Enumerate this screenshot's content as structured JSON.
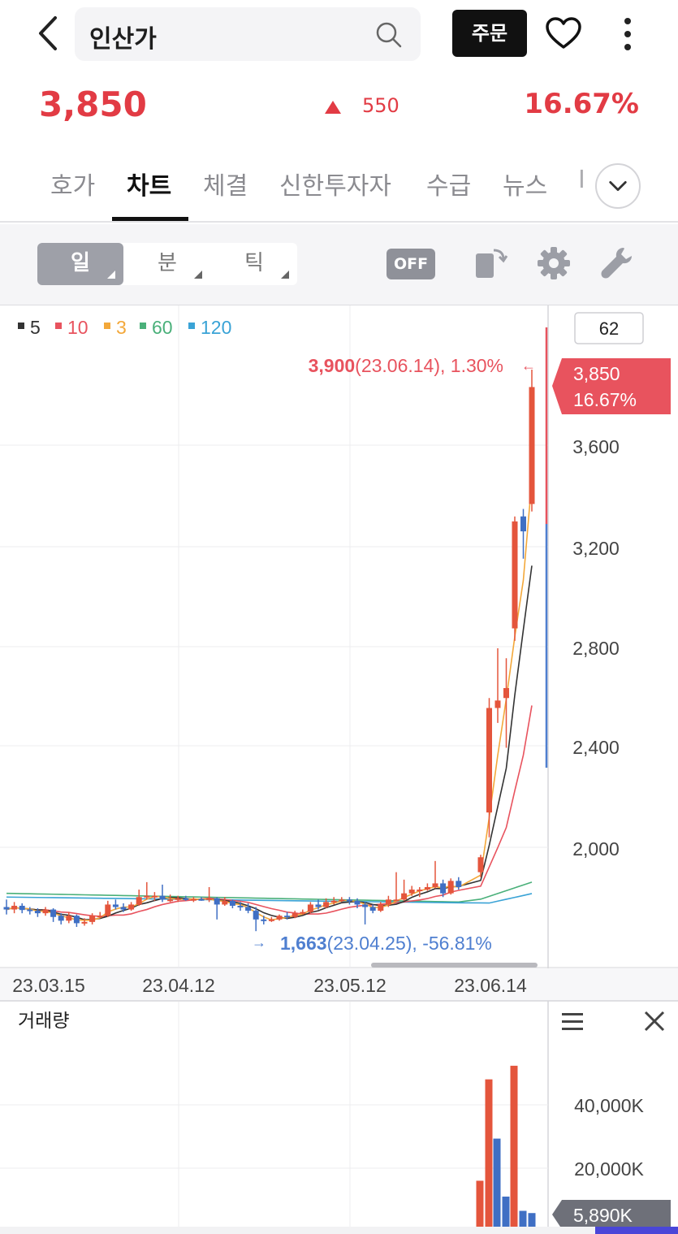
{
  "header": {
    "stock_name": "인산가",
    "order_label": "주문",
    "icons": {
      "back": "back-arrow-icon",
      "search": "search-icon",
      "favorite": "heart-icon",
      "more": "more-vertical-icon"
    }
  },
  "quote": {
    "price": "3,850",
    "change": "550",
    "change_direction": "up",
    "rate": "16.67%"
  },
  "tabs": [
    {
      "label": "호가",
      "active": false
    },
    {
      "label": "차트",
      "active": true
    },
    {
      "label": "체결",
      "active": false
    },
    {
      "label": "신한투자자",
      "active": false
    },
    {
      "label": "수급",
      "active": false
    },
    {
      "label": "뉴스",
      "active": false
    },
    {
      "label": "I",
      "active": false
    }
  ],
  "toolbar": {
    "periods": [
      {
        "label": "일",
        "active": true
      },
      {
        "label": "분",
        "active": false
      },
      {
        "label": "틱",
        "active": false
      }
    ],
    "off_label": "OFF",
    "icons": [
      "rotate-screen-icon",
      "gear-icon",
      "wrench-icon"
    ]
  },
  "chart": {
    "ma_legend": [
      {
        "label": "5",
        "color": "#333333"
      },
      {
        "label": "10",
        "color": "#e8535e"
      },
      {
        "label": "3",
        "color": "#f3a83a"
      },
      {
        "label": "60",
        "color": "#4ab07a"
      },
      {
        "label": "120",
        "color": "#3aa3d6"
      }
    ],
    "candle_count": "62",
    "high_marker": {
      "price": "3,900",
      "detail": "(23.06.14), 1.30%"
    },
    "low_marker": {
      "price": "1,663",
      "detail": "(23.04.25), -56.81%"
    },
    "current_tag": {
      "price": "3,850",
      "rate": "16.67%"
    },
    "y_ticks": [
      "3,600",
      "3,200",
      "2,800",
      "2,400",
      "2,000"
    ],
    "x_ticks": [
      "23.03.15",
      "23.04.12",
      "23.05.12",
      "23.06.14"
    ],
    "colors": {
      "up": "#e4553c",
      "down": "#3f6fc4"
    }
  },
  "volume": {
    "title": "거래량",
    "y_ticks": [
      "40,000K",
      "20,000K"
    ],
    "current_tag": "5,890K"
  },
  "chart_data": {
    "type": "candlestick",
    "y_ticks": [
      3600,
      3200,
      2800,
      2400,
      2000
    ],
    "x_ticks": [
      "23.03.15",
      "23.04.12",
      "23.05.12",
      "23.06.14"
    ],
    "high": {
      "value": 3900,
      "date": "23.06.14"
    },
    "low": {
      "value": 1663,
      "date": "23.04.25"
    },
    "last": 3850,
    "volume_y_ticks_k": [
      40000,
      20000
    ],
    "last_volume_k": 5890
  }
}
